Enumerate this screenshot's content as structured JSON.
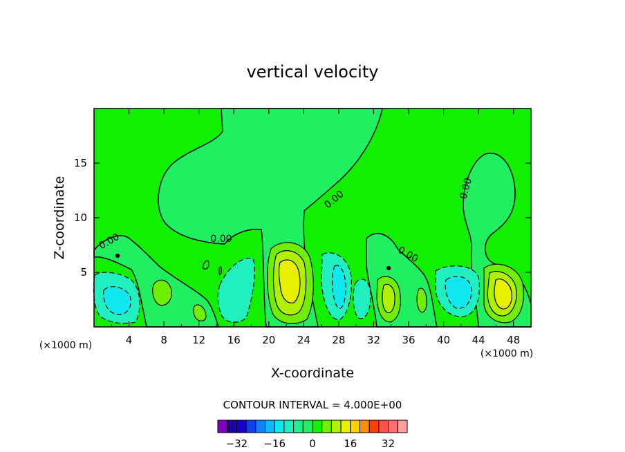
{
  "chart_data": {
    "type": "heatmap",
    "title": "vertical velocity",
    "xlabel": "X-coordinate",
    "ylabel": "Z-coordinate",
    "x_unit": "(×1000 m)",
    "x_unit_right": "(×1000 m)",
    "xlim": [
      0,
      50
    ],
    "ylim": [
      0,
      20
    ],
    "x_ticks": [
      4,
      8,
      12,
      16,
      20,
      24,
      28,
      32,
      36,
      40,
      44,
      48
    ],
    "y_ticks": [
      5,
      10,
      15
    ],
    "contour_interval_text": "CONTOUR INTERVAL = 4.000E+00",
    "contour_labels": [
      "0.00",
      "0.00",
      "0.00",
      "0.00",
      "0.00"
    ],
    "colorbar": {
      "colors": [
        "#8000c0",
        "#2000a0",
        "#1800d0",
        "#1040f0",
        "#1080ff",
        "#10b8ff",
        "#10e8f0",
        "#20f0c0",
        "#20f090",
        "#20f060",
        "#10f000",
        "#70f000",
        "#b0f000",
        "#e8f000",
        "#ffd000",
        "#ff9000",
        "#ff4000",
        "#ff5050",
        "#ff7070",
        "#ffa0a0"
      ],
      "tick_labels": [
        "−32",
        "−16",
        "0",
        "16",
        "32"
      ],
      "tick_values": [
        -32,
        -16,
        0,
        16,
        32
      ],
      "range": [
        -40,
        40
      ]
    },
    "features": [
      {
        "kind": "updraft",
        "x": 21.8,
        "z": 4.3,
        "peak": 12
      },
      {
        "kind": "updraft",
        "x": 46.2,
        "z": 3.2,
        "peak": 12
      },
      {
        "kind": "updraft",
        "x": 33.4,
        "z": 2.8,
        "peak": 8
      },
      {
        "kind": "updraft",
        "x": 8.0,
        "z": 3.0,
        "peak": 4
      },
      {
        "kind": "downdraft",
        "x": 1.5,
        "z": 3.0,
        "peak": -8
      },
      {
        "kind": "downdraft",
        "x": 4.0,
        "z": 2.5,
        "peak": -8
      },
      {
        "kind": "downdraft",
        "x": 17.0,
        "z": 3.5,
        "peak": -8
      },
      {
        "kind": "downdraft",
        "x": 28.5,
        "z": 3.5,
        "peak": -8
      },
      {
        "kind": "downdraft",
        "x": 31.0,
        "z": 2.5,
        "peak": -4
      },
      {
        "kind": "downdraft",
        "x": 41.5,
        "z": 3.5,
        "peak": -8
      }
    ]
  }
}
